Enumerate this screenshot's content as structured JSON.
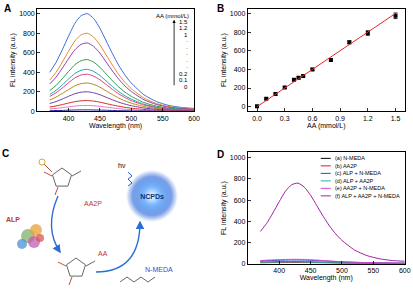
{
  "chart_data": [
    {
      "type": "line",
      "title": "A",
      "x_label": "Wavelength (nm)",
      "y_label": "FL intensity (a.u.)",
      "legend_title": "AA (mmol/L)",
      "x": [
        370,
        380,
        390,
        400,
        410,
        420,
        430,
        440,
        450,
        460,
        470,
        480,
        490,
        500,
        520,
        540,
        560,
        580,
        600
      ],
      "series": [
        {
          "name": "1.5",
          "color": "#3d6fd6",
          "values": [
            400,
            500,
            630,
            770,
            900,
            980,
            1000,
            950,
            850,
            720,
            590,
            470,
            370,
            290,
            170,
            100,
            60,
            40,
            30
          ]
        },
        {
          "name": "1.2",
          "color": "#e8882f",
          "values": [
            320,
            400,
            504,
            616,
            720,
            784,
            800,
            760,
            680,
            576,
            472,
            376,
            296,
            232,
            136,
            80,
            48,
            32,
            24
          ]
        },
        {
          "name": "1",
          "color": "#8a3fb0",
          "values": [
            280,
            350,
            441,
            539,
            630,
            686,
            700,
            665,
            595,
            504,
            413,
            329,
            259,
            203,
            119,
            70,
            42,
            28,
            21
          ]
        },
        {
          "name": "·",
          "color": "#2e9e3e",
          "values": [
            212,
            265,
            334,
            408,
            477,
            519,
            530,
            504,
            451,
            382,
            313,
            249,
            196,
            154,
            90,
            53,
            32,
            21,
            16
          ]
        },
        {
          "name": "·",
          "color": "#1aa6b7",
          "values": [
            172,
            215,
            271,
            331,
            387,
            421,
            430,
            409,
            366,
            310,
            254,
            202,
            159,
            125,
            73,
            43,
            26,
            17,
            13
          ]
        },
        {
          "name": "·",
          "color": "#e0407a",
          "values": [
            152,
            190,
            239,
            293,
            342,
            372,
            380,
            361,
            323,
            274,
            224,
            179,
            141,
            110,
            65,
            38,
            23,
            15,
            11
          ]
        },
        {
          "name": "·",
          "color": "#b8860b",
          "values": [
            116,
            145,
            183,
            223,
            261,
            284,
            290,
            276,
            247,
            209,
            171,
            136,
            107,
            84,
            49,
            29,
            17,
            12,
            9
          ]
        },
        {
          "name": "·",
          "color": "#6b3fa0",
          "values": [
            80,
            100,
            126,
            154,
            180,
            196,
            200,
            190,
            170,
            144,
            118,
            94,
            74,
            58,
            34,
            20,
            12,
            8,
            6
          ]
        },
        {
          "name": "0.2",
          "color": "#d62728",
          "values": [
            44,
            55,
            69,
            85,
            99,
            108,
            110,
            105,
            94,
            79,
            65,
            52,
            41,
            32,
            19,
            11,
            7,
            4,
            3
          ]
        },
        {
          "name": "0.1",
          "color": "#e377c2",
          "values": [
            24,
            30,
            38,
            46,
            54,
            59,
            60,
            57,
            51,
            43,
            35,
            28,
            22,
            17,
            10,
            6,
            4,
            2,
            2
          ]
        },
        {
          "name": "0",
          "color": "#1f1f8f",
          "values": [
            6,
            8,
            9,
            12,
            14,
            15,
            15,
            14,
            13,
            11,
            9,
            7,
            6,
            4,
            3,
            2,
            1,
            1,
            0
          ]
        }
      ],
      "xlim": [
        350,
        600
      ],
      "xticks": [
        400,
        450,
        500,
        550,
        600
      ],
      "ylim": [
        0,
        1050
      ],
      "yticks": [
        0,
        200,
        400,
        600,
        800,
        1000
      ]
    },
    {
      "type": "scatter",
      "title": "B",
      "x_label": "AA (mmol/L)",
      "y_label": "FL intensity (a.u.)",
      "series": [
        {
          "type": "scatter",
          "marker": "square",
          "color": "#000000",
          "x": [
            0,
            0.1,
            0.2,
            0.3,
            0.4,
            0.45,
            0.5,
            0.6,
            0.8,
            1.0,
            1.2,
            1.5
          ],
          "values": [
            5,
            85,
            135,
            205,
            290,
            310,
            330,
            400,
            500,
            690,
            790,
            975
          ],
          "errors": [
            8,
            8,
            10,
            10,
            12,
            12,
            12,
            12,
            15,
            15,
            25,
            30
          ]
        },
        {
          "type": "line",
          "color": "#e8262a",
          "x": [
            0,
            1.5
          ],
          "values": [
            0,
            1000
          ]
        }
      ],
      "xlim": [
        -0.1,
        1.6
      ],
      "xticks": [
        {
          "value": 0,
          "label": "0.0"
        },
        0.3,
        0.6,
        0.9,
        1.2,
        1.5
      ],
      "ylim": [
        -50,
        1050
      ],
      "yticks": [
        0,
        200,
        400,
        600,
        800,
        1000
      ]
    },
    {
      "type": "line",
      "title": "D",
      "x_label": "Wavelength (nm)",
      "y_label": "FL intensity (a.u.)",
      "x": [
        370,
        380,
        390,
        400,
        410,
        420,
        430,
        440,
        450,
        460,
        470,
        480,
        490,
        500,
        520,
        540,
        560,
        580,
        600
      ],
      "series": [
        {
          "name": "(a) N-MEDA",
          "color": "#000000",
          "values": [
            15,
            15,
            16,
            17,
            18,
            18,
            18,
            17,
            16,
            15,
            13,
            12,
            10,
            9,
            7,
            5,
            4,
            3,
            3
          ]
        },
        {
          "name": "(b) AA2P",
          "color": "#e41a1c",
          "values": [
            8,
            9,
            10,
            10,
            11,
            11,
            11,
            10,
            10,
            9,
            8,
            7,
            6,
            5,
            4,
            3,
            3,
            2,
            2
          ]
        },
        {
          "name": "(c) ALP + N-MEDA",
          "color": "#1f4fd6",
          "values": [
            25,
            28,
            30,
            32,
            34,
            35,
            35,
            34,
            32,
            29,
            26,
            23,
            20,
            17,
            13,
            10,
            8,
            6,
            5
          ]
        },
        {
          "name": "(d) ALP + AA2P",
          "color": "#2bb0a8",
          "values": [
            12,
            13,
            14,
            15,
            16,
            16,
            16,
            15,
            14,
            13,
            12,
            10,
            9,
            8,
            6,
            5,
            4,
            3,
            3
          ]
        },
        {
          "name": "(e) AA2P + N-MEDA",
          "color": "#e040c8",
          "values": [
            30,
            33,
            36,
            38,
            40,
            41,
            41,
            40,
            37,
            34,
            30,
            26,
            22,
            19,
            14,
            10,
            8,
            6,
            5
          ]
        },
        {
          "name": "(f) ALP + AA2P + N-MEDA",
          "color": "#a020a0",
          "values": [
            304,
            380,
            479,
            585,
            684,
            745,
            760,
            722,
            646,
            547,
            448,
            357,
            281,
            220,
            129,
            76,
            46,
            30,
            23
          ]
        }
      ],
      "xlim": [
        350,
        600
      ],
      "xticks": [
        400,
        450,
        500,
        550,
        600
      ],
      "ylim": [
        0,
        1050
      ],
      "yticks": [
        0,
        200,
        400,
        600,
        800,
        1000
      ]
    }
  ],
  "diagram": {
    "title": "C",
    "substrate": "AA2P",
    "enzyme": "ALP",
    "product": "AA",
    "reagent": "N-MEDA",
    "dots": "NCPDs",
    "light": "hν"
  }
}
